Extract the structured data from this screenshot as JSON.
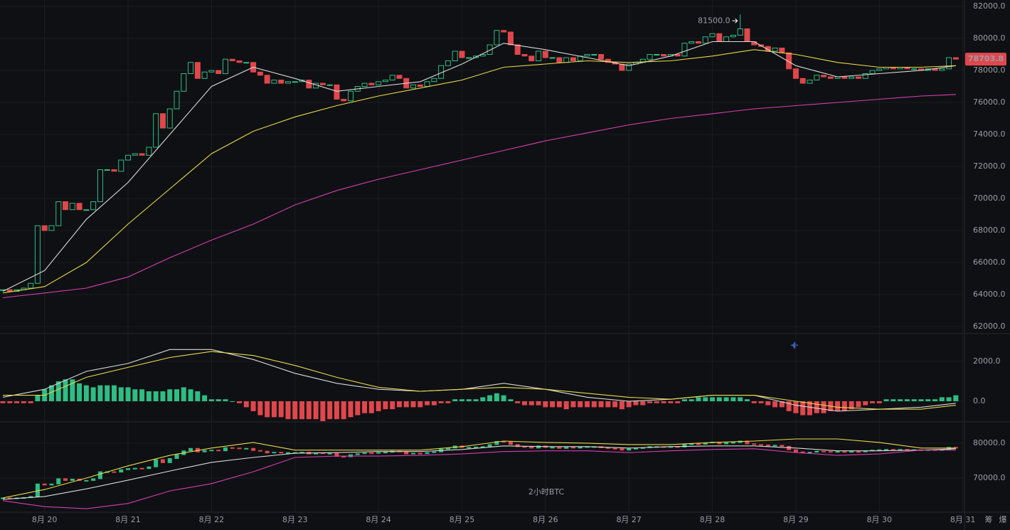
{
  "chart_data": {
    "type": "candlestick",
    "title": "2小时BTC",
    "up_color": "#2ebd85",
    "down_color": "#e0474c",
    "close": [
      64300,
      64200,
      64300,
      64400,
      64700,
      68300,
      68000,
      68300,
      69800,
      69300,
      69700,
      69300,
      69300,
      69800,
      71800,
      71800,
      71700,
      72400,
      72700,
      72800,
      72700,
      73200,
      75300,
      74400,
      75600,
      76700,
      77800,
      78500,
      77500,
      77900,
      78000,
      77800,
      78700,
      78600,
      78500,
      78500,
      77900,
      77700,
      77200,
      77400,
      77200,
      77300,
      77300,
      77400,
      76900,
      77200,
      77100,
      77100,
      76200,
      76100,
      76700,
      77000,
      77200,
      77100,
      77300,
      77400,
      77700,
      77500,
      76900,
      77100,
      77000,
      77300,
      77500,
      78300,
      78600,
      79200,
      78800,
      78800,
      78900,
      79000,
      79600,
      80500,
      80400,
      79600,
      79000,
      78900,
      78600,
      79200,
      78800,
      78800,
      78500,
      78800,
      78600,
      78900,
      79000,
      79000,
      78700,
      78500,
      78400,
      78000,
      78400,
      78500,
      78700,
      79000,
      79000,
      78900,
      79000,
      78900,
      79700,
      79800,
      79700,
      80100,
      80300,
      79800,
      80100,
      80200,
      80600,
      79800,
      79600,
      79500,
      79200,
      79400,
      79100,
      78100,
      77500,
      77200,
      77400,
      77700,
      77600,
      77500,
      77600,
      77500,
      77600,
      77500,
      77800,
      78000,
      78100,
      78200,
      78100,
      78200,
      78100,
      78100,
      78000,
      78100,
      78000,
      78100,
      78800,
      78703.8
    ],
    "ylim": [
      61600,
      82400
    ],
    "yticks": [
      {
        "value": 62000,
        "label": "62000.0"
      },
      {
        "value": 64000,
        "label": "64000.0"
      },
      {
        "value": 66000,
        "label": "66000.0"
      },
      {
        "value": 68000,
        "label": "68000.0"
      },
      {
        "value": 70000,
        "label": "70000.0"
      },
      {
        "value": 72000,
        "label": "72000.0"
      },
      {
        "value": 74000,
        "label": "74000.0"
      },
      {
        "value": 76000,
        "label": "76000.0"
      },
      {
        "value": 78000,
        "label": "78000.0"
      },
      {
        "value": 80000,
        "label": "80000.0"
      },
      {
        "value": 82000,
        "label": "82000.0"
      }
    ],
    "max_marker": {
      "value": 81500,
      "label": "81500.0"
    },
    "line_x": [
      0,
      6,
      12,
      18,
      24,
      30,
      36,
      42,
      48,
      54,
      60,
      66,
      72,
      78,
      84,
      90,
      96,
      102,
      108,
      114,
      120,
      126,
      132,
      137
    ],
    "ma": [
      {
        "color": "#d9d9d9",
        "values": [
          64200,
          65500,
          68700,
          71000,
          74000,
          77000,
          78200,
          77500,
          76700,
          77000,
          77300,
          78400,
          79700,
          79300,
          78800,
          78300,
          78900,
          79800,
          79800,
          78300,
          77600,
          77800,
          78000,
          78300
        ]
      },
      {
        "color": "#e8d84a",
        "values": [
          64100,
          64500,
          66000,
          68400,
          70600,
          72800,
          74200,
          75100,
          75800,
          76400,
          76900,
          77400,
          78200,
          78400,
          78600,
          78500,
          78600,
          78900,
          79300,
          79000,
          78500,
          78200,
          78200,
          78300
        ]
      },
      {
        "color": "#d43fb0",
        "values": [
          63800,
          64100,
          64400,
          65100,
          66300,
          67400,
          68400,
          69600,
          70500,
          71200,
          71800,
          72400,
          73000,
          73600,
          74100,
          74600,
          75000,
          75300,
          75600,
          75800,
          76000,
          76200,
          76400,
          76500
        ]
      }
    ],
    "macd": {
      "ylim": [
        -1000,
        3360
      ],
      "yticks": [
        {
          "value": 2000,
          "label": "2000.0"
        },
        {
          "value": 0,
          "label": "0.0"
        }
      ],
      "histogram": [
        -100,
        -100,
        -100,
        -100,
        -100,
        300,
        600,
        800,
        1000,
        1100,
        1100,
        900,
        800,
        700,
        800,
        800,
        800,
        700,
        700,
        600,
        600,
        500,
        500,
        500,
        600,
        600,
        700,
        600,
        500,
        300,
        100,
        100,
        100,
        0,
        -100,
        -300,
        -500,
        -700,
        -800,
        -800,
        -800,
        -900,
        -900,
        -900,
        -900,
        -900,
        -1000,
        -900,
        -900,
        -900,
        -800,
        -700,
        -600,
        -600,
        -500,
        -400,
        -400,
        -300,
        -300,
        -300,
        -300,
        -200,
        -200,
        -100,
        -100,
        100,
        100,
        100,
        100,
        200,
        300,
        400,
        300,
        100,
        -100,
        -200,
        -200,
        -200,
        -300,
        -300,
        -300,
        -400,
        -300,
        -300,
        -300,
        -300,
        -300,
        -300,
        -300,
        -400,
        -300,
        -200,
        -200,
        -100,
        -100,
        -100,
        -100,
        -100,
        100,
        100,
        200,
        200,
        200,
        200,
        200,
        200,
        200,
        100,
        -100,
        -100,
        -200,
        -300,
        -300,
        -500,
        -600,
        -700,
        -700,
        -600,
        -600,
        -500,
        -500,
        -500,
        -400,
        -300,
        -200,
        -100,
        -100,
        100,
        100,
        100,
        100,
        100,
        100,
        100,
        100,
        200,
        200,
        300
      ],
      "lines": [
        {
          "color": "#d9d9d9",
          "values": [
            200,
            600,
            1500,
            1900,
            2600,
            2600,
            2100,
            1400,
            900,
            600,
            500,
            600,
            900,
            600,
            200,
            0,
            100,
            300,
            300,
            -200,
            -500,
            -400,
            -300,
            -100
          ]
        },
        {
          "color": "#e8d84a",
          "values": [
            300,
            300,
            1200,
            1700,
            2200,
            2500,
            2300,
            1800,
            1200,
            700,
            500,
            600,
            700,
            600,
            400,
            200,
            100,
            300,
            300,
            0,
            -300,
            -400,
            -400,
            -200
          ]
        }
      ]
    },
    "boll": {
      "ylim": [
        60200,
        85900
      ],
      "yticks": [
        {
          "value": 80000,
          "label": "80000.0"
        },
        {
          "value": 70000,
          "label": "70000.0"
        }
      ],
      "lines": [
        {
          "color": "#e8d84a",
          "values": [
            64300,
            66700,
            70000,
            73500,
            76500,
            78600,
            80200,
            78000,
            78000,
            78000,
            78000,
            79000,
            80600,
            80200,
            80000,
            79600,
            79600,
            80200,
            80600,
            81200,
            81200,
            80200,
            78600,
            78600
          ]
        },
        {
          "color": "#d9d9d9",
          "values": [
            63900,
            64700,
            66900,
            69400,
            72000,
            74500,
            75900,
            77100,
            77300,
            77600,
            77600,
            78200,
            79200,
            79000,
            79000,
            78600,
            79000,
            79200,
            79200,
            78600,
            77800,
            77800,
            78000,
            78400
          ]
        },
        {
          "color": "#d43fb0",
          "values": [
            63500,
            61800,
            61200,
            62700,
            66300,
            68400,
            71800,
            75900,
            76300,
            76300,
            76500,
            76900,
            77600,
            77800,
            77800,
            77300,
            77800,
            78200,
            78400,
            77300,
            76500,
            76900,
            78000,
            78000
          ]
        }
      ]
    },
    "x_labels": [
      "8月 20",
      "8月 21",
      "8月 22",
      "8月 23",
      "8月 24",
      "8月 25",
      "8月 26",
      "8月 27",
      "8月 28",
      "8月 29",
      "8月 30",
      "8月 31"
    ],
    "side_tabs": [
      "筹",
      "爆"
    ]
  }
}
